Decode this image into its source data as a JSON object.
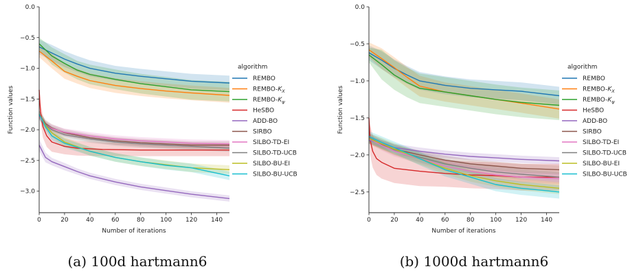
{
  "chart_data": [
    {
      "type": "line",
      "caption": "(a) 100d hartmann6",
      "xlabel": "Number of iterations",
      "ylabel": "Function values",
      "xlim": [
        0,
        150
      ],
      "ylim": [
        -3.35,
        0
      ],
      "xticks": [
        0,
        20,
        40,
        60,
        80,
        100,
        120,
        140
      ],
      "yticks": [
        0.0,
        -0.5,
        -1.0,
        -1.5,
        -2.0,
        -2.5,
        -3.0
      ],
      "ytick_labels": [
        "0.0",
        "−0.5",
        "−1.0",
        "−1.5",
        "−2.0",
        "−2.5",
        "−3.0"
      ],
      "legend_title": "algorithm",
      "legend_position": "right-outside",
      "series": [
        {
          "name": "REMBO",
          "color": "#1f77b4",
          "x": [
            0,
            10,
            20,
            30,
            40,
            60,
            80,
            100,
            120,
            150
          ],
          "values": [
            -0.65,
            -0.75,
            -0.85,
            -0.93,
            -1.0,
            -1.08,
            -1.13,
            -1.17,
            -1.21,
            -1.24
          ],
          "band": [
            0.12,
            0.13,
            0.13,
            0.13,
            0.13,
            0.12,
            0.12,
            0.12,
            0.12,
            0.12
          ]
        },
        {
          "name": "REMBO-K_X",
          "color": "#ff7f0e",
          "x": [
            0,
            10,
            20,
            30,
            40,
            60,
            80,
            100,
            120,
            150
          ],
          "values": [
            -0.72,
            -0.88,
            -1.05,
            -1.13,
            -1.2,
            -1.28,
            -1.33,
            -1.37,
            -1.4,
            -1.44
          ],
          "band": [
            0.1,
            0.12,
            0.12,
            0.12,
            0.12,
            0.12,
            0.12,
            0.12,
            0.12,
            0.12
          ]
        },
        {
          "name": "REMBO-K_ψ",
          "color": "#2ca02c",
          "x": [
            0,
            10,
            20,
            30,
            40,
            60,
            80,
            100,
            120,
            150
          ],
          "values": [
            -0.6,
            -0.8,
            -0.92,
            -1.03,
            -1.1,
            -1.18,
            -1.25,
            -1.3,
            -1.35,
            -1.38
          ],
          "band": [
            0.1,
            0.14,
            0.15,
            0.15,
            0.16,
            0.16,
            0.16,
            0.16,
            0.16,
            0.16
          ]
        },
        {
          "name": "HeSBO",
          "color": "#d62728",
          "x": [
            0,
            1,
            3,
            6,
            10,
            20,
            30,
            50,
            80,
            150
          ],
          "values": [
            -1.35,
            -1.7,
            -1.95,
            -2.1,
            -2.2,
            -2.27,
            -2.3,
            -2.32,
            -2.33,
            -2.33
          ],
          "band": [
            0.1,
            0.15,
            0.18,
            0.18,
            0.16,
            0.13,
            0.12,
            0.11,
            0.1,
            0.1
          ]
        },
        {
          "name": "ADD-BO",
          "color": "#9467bd",
          "x": [
            0,
            5,
            10,
            20,
            30,
            40,
            60,
            80,
            100,
            120,
            150
          ],
          "values": [
            -2.25,
            -2.45,
            -2.52,
            -2.6,
            -2.68,
            -2.75,
            -2.85,
            -2.93,
            -2.99,
            -3.05,
            -3.12
          ],
          "band": [
            0.1,
            0.08,
            0.06,
            0.06,
            0.05,
            0.05,
            0.05,
            0.05,
            0.05,
            0.05,
            0.05
          ]
        },
        {
          "name": "SIRBO",
          "color": "#8c564b",
          "x": [
            0,
            5,
            10,
            20,
            40,
            60,
            80,
            100,
            120,
            150
          ],
          "values": [
            -1.75,
            -1.9,
            -1.97,
            -2.05,
            -2.13,
            -2.18,
            -2.21,
            -2.23,
            -2.25,
            -2.25
          ],
          "band": [
            0.06,
            0.06,
            0.06,
            0.06,
            0.06,
            0.06,
            0.06,
            0.06,
            0.06,
            0.06
          ]
        },
        {
          "name": "SILBO-TD-EI",
          "color": "#e377c2",
          "x": [
            0,
            5,
            10,
            20,
            40,
            60,
            80,
            100,
            120,
            150
          ],
          "values": [
            -1.78,
            -1.92,
            -1.98,
            -2.04,
            -2.1,
            -2.15,
            -2.18,
            -2.2,
            -2.22,
            -2.23
          ],
          "band": [
            0.06,
            0.06,
            0.06,
            0.06,
            0.06,
            0.06,
            0.06,
            0.06,
            0.06,
            0.06
          ]
        },
        {
          "name": "SILBO-TD-UCB",
          "color": "#7f7f7f",
          "x": [
            0,
            5,
            10,
            20,
            40,
            60,
            80,
            100,
            120,
            150
          ],
          "values": [
            -1.75,
            -1.92,
            -2.0,
            -2.08,
            -2.15,
            -2.2,
            -2.23,
            -2.25,
            -2.27,
            -2.3
          ],
          "band": [
            0.06,
            0.06,
            0.06,
            0.06,
            0.06,
            0.06,
            0.06,
            0.06,
            0.06,
            0.06
          ]
        },
        {
          "name": "SILBO-BU-EI",
          "color": "#bcbd22",
          "x": [
            0,
            5,
            10,
            20,
            40,
            60,
            80,
            100,
            120,
            150
          ],
          "values": [
            -1.75,
            -1.93,
            -2.05,
            -2.2,
            -2.35,
            -2.45,
            -2.52,
            -2.57,
            -2.62,
            -2.65
          ],
          "band": [
            0.07,
            0.07,
            0.07,
            0.07,
            0.07,
            0.07,
            0.07,
            0.07,
            0.07,
            0.07
          ]
        },
        {
          "name": "SILBO-BU-UCB",
          "color": "#17becf",
          "x": [
            0,
            5,
            10,
            20,
            40,
            60,
            80,
            100,
            120,
            150
          ],
          "values": [
            -1.75,
            -1.95,
            -2.1,
            -2.22,
            -2.35,
            -2.45,
            -2.52,
            -2.58,
            -2.62,
            -2.75
          ],
          "band": [
            0.07,
            0.07,
            0.07,
            0.07,
            0.07,
            0.07,
            0.07,
            0.07,
            0.07,
            0.07
          ]
        }
      ]
    },
    {
      "type": "line",
      "caption": "(b) 1000d hartmann6",
      "xlabel": "Number of iterations",
      "ylabel": "Function values",
      "xlim": [
        0,
        150
      ],
      "ylim": [
        -2.78,
        0
      ],
      "xticks": [
        0,
        20,
        40,
        60,
        80,
        100,
        120,
        140
      ],
      "yticks": [
        0.0,
        -0.5,
        -1.0,
        -1.5,
        -2.0,
        -2.5
      ],
      "ytick_labels": [
        "0.0",
        "−0.5",
        "−1.0",
        "−1.5",
        "−2.0",
        "−2.5"
      ],
      "legend_title": "algorithm",
      "legend_position": "right-outside",
      "series": [
        {
          "name": "REMBO",
          "color": "#1f77b4",
          "x": [
            0,
            10,
            20,
            30,
            40,
            60,
            80,
            100,
            120,
            150
          ],
          "values": [
            -0.62,
            -0.72,
            -0.83,
            -0.92,
            -1.0,
            -1.06,
            -1.1,
            -1.12,
            -1.14,
            -1.2
          ],
          "band": [
            0.1,
            0.12,
            0.12,
            0.12,
            0.12,
            0.12,
            0.12,
            0.12,
            0.12,
            0.12
          ]
        },
        {
          "name": "REMBO-K_X",
          "color": "#ff7f0e",
          "x": [
            0,
            10,
            20,
            30,
            40,
            60,
            80,
            100,
            120,
            150
          ],
          "values": [
            -0.58,
            -0.7,
            -0.82,
            -0.95,
            -1.07,
            -1.15,
            -1.2,
            -1.25,
            -1.3,
            -1.38
          ],
          "band": [
            0.1,
            0.14,
            0.14,
            0.14,
            0.14,
            0.13,
            0.13,
            0.13,
            0.13,
            0.13
          ]
        },
        {
          "name": "REMBO-K_ψ",
          "color": "#2ca02c",
          "x": [
            0,
            10,
            20,
            30,
            40,
            60,
            80,
            100,
            120,
            150
          ],
          "values": [
            -0.65,
            -0.78,
            -0.92,
            -1.02,
            -1.1,
            -1.15,
            -1.2,
            -1.25,
            -1.29,
            -1.33
          ],
          "band": [
            0.1,
            0.2,
            0.2,
            0.2,
            0.2,
            0.2,
            0.2,
            0.2,
            0.2,
            0.2
          ]
        },
        {
          "name": "HeSBO",
          "color": "#d62728",
          "x": [
            0,
            1,
            3,
            6,
            10,
            20,
            40,
            60,
            80,
            100,
            120,
            150
          ],
          "values": [
            -1.5,
            -1.8,
            -1.95,
            -2.05,
            -2.1,
            -2.18,
            -2.22,
            -2.25,
            -2.27,
            -2.28,
            -2.3,
            -2.3
          ],
          "band": [
            0.1,
            0.2,
            0.22,
            0.22,
            0.22,
            0.2,
            0.2,
            0.18,
            0.18,
            0.18,
            0.18,
            0.18
          ]
        },
        {
          "name": "ADD-BO",
          "color": "#9467bd",
          "x": [
            0,
            10,
            20,
            40,
            60,
            80,
            100,
            120,
            150
          ],
          "values": [
            -1.8,
            -1.85,
            -1.9,
            -1.95,
            -1.99,
            -2.02,
            -2.04,
            -2.06,
            -2.08
          ],
          "band": [
            0.05,
            0.05,
            0.05,
            0.05,
            0.05,
            0.05,
            0.05,
            0.05,
            0.05
          ]
        },
        {
          "name": "SIRBO",
          "color": "#8c564b",
          "x": [
            0,
            10,
            20,
            40,
            60,
            80,
            100,
            120,
            150
          ],
          "values": [
            -1.78,
            -1.86,
            -1.92,
            -2.0,
            -2.07,
            -2.12,
            -2.15,
            -2.18,
            -2.2
          ],
          "band": [
            0.06,
            0.06,
            0.06,
            0.06,
            0.06,
            0.06,
            0.06,
            0.06,
            0.06
          ]
        },
        {
          "name": "SILBO-TD-EI",
          "color": "#e377c2",
          "x": [
            0,
            10,
            20,
            40,
            60,
            80,
            100,
            120,
            150
          ],
          "values": [
            -1.78,
            -1.87,
            -1.95,
            -2.05,
            -2.15,
            -2.22,
            -2.27,
            -2.3,
            -2.32
          ],
          "band": [
            0.07,
            0.07,
            0.07,
            0.07,
            0.07,
            0.07,
            0.07,
            0.07,
            0.07
          ]
        },
        {
          "name": "SILBO-TD-UCB",
          "color": "#7f7f7f",
          "x": [
            0,
            10,
            20,
            40,
            60,
            80,
            100,
            120,
            150
          ],
          "values": [
            -1.77,
            -1.85,
            -1.93,
            -2.03,
            -2.12,
            -2.18,
            -2.23,
            -2.26,
            -2.3
          ],
          "band": [
            0.07,
            0.07,
            0.07,
            0.07,
            0.07,
            0.07,
            0.07,
            0.07,
            0.07
          ]
        },
        {
          "name": "SILBO-BU-EI",
          "color": "#bcbd22",
          "x": [
            0,
            10,
            20,
            40,
            60,
            80,
            100,
            120,
            150
          ],
          "values": [
            -1.78,
            -1.85,
            -1.92,
            -2.05,
            -2.18,
            -2.28,
            -2.35,
            -2.4,
            -2.45
          ],
          "band": [
            0.07,
            0.08,
            0.08,
            0.08,
            0.08,
            0.08,
            0.08,
            0.08,
            0.08
          ]
        },
        {
          "name": "SILBO-BU-UCB",
          "color": "#17becf",
          "x": [
            0,
            10,
            20,
            40,
            60,
            80,
            100,
            120,
            150
          ],
          "values": [
            -1.75,
            -1.83,
            -1.9,
            -2.05,
            -2.2,
            -2.3,
            -2.4,
            -2.45,
            -2.5
          ],
          "band": [
            0.07,
            0.08,
            0.08,
            0.09,
            0.09,
            0.09,
            0.09,
            0.09,
            0.09
          ]
        }
      ]
    }
  ]
}
